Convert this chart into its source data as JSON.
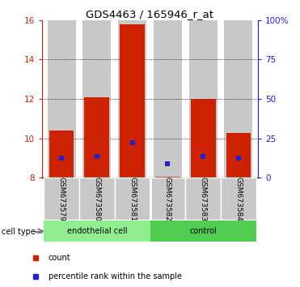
{
  "title": "GDS4463 / 165946_r_at",
  "samples": [
    "GSM673579",
    "GSM673580",
    "GSM673581",
    "GSM673582",
    "GSM673583",
    "GSM673584"
  ],
  "red_bar_tops": [
    10.4,
    12.1,
    15.8,
    8.05,
    12.0,
    10.3
  ],
  "blue_square_values": [
    9.0,
    9.1,
    9.8,
    8.7,
    9.1,
    9.0
  ],
  "baseline": 8.0,
  "ylim_left": [
    8,
    16
  ],
  "ylim_right": [
    0,
    100
  ],
  "yticks_left": [
    8,
    10,
    12,
    14,
    16
  ],
  "yticks_right": [
    0,
    25,
    50,
    75,
    100
  ],
  "cell_type_labels": [
    "endothelial cell",
    "control"
  ],
  "bar_color": "#cc2200",
  "blue_color": "#2222cc",
  "bg_color": "#c8c8c8",
  "left_axis_color": "#cc2200",
  "right_axis_color": "#1a1aff",
  "endothelial_color": "#90ee90",
  "control_color": "#50cc50",
  "legend_red_label": "count",
  "legend_blue_label": "percentile rank within the sample",
  "bar_width": 0.7,
  "grid_yticks": [
    10,
    12,
    14
  ],
  "n_samples": 6,
  "endothelial_count": 3,
  "control_count": 3
}
